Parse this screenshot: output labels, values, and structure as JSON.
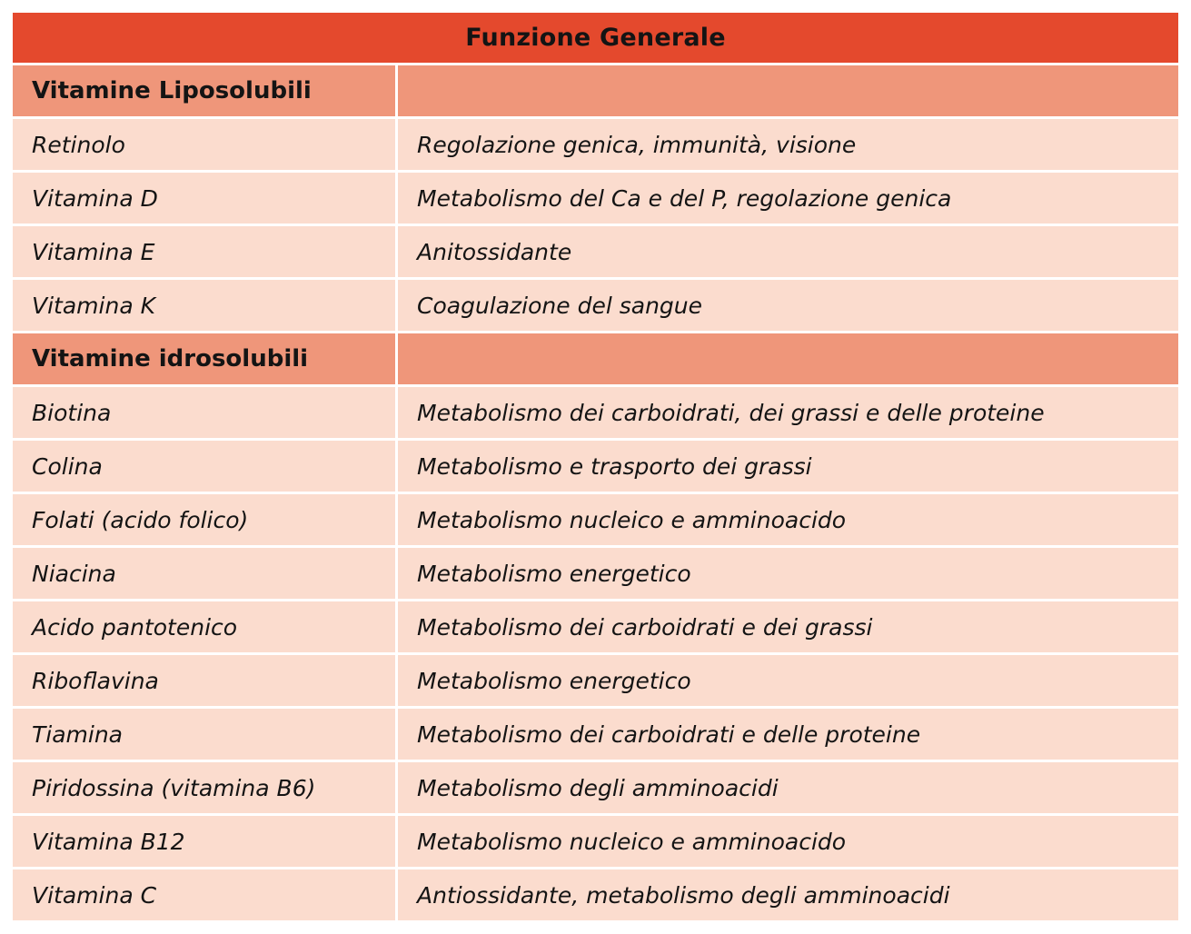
{
  "table": {
    "header": "Funzione Generale",
    "columns": [
      "vitamin",
      "function"
    ],
    "rows": [
      {
        "type": "section",
        "name": "Vitamine Liposolubili",
        "function": ""
      },
      {
        "type": "data",
        "name": "Retinolo",
        "function": "Regolazione genica, immunità, visione"
      },
      {
        "type": "data",
        "name": "Vitamina D",
        "function": "Metabolismo del Ca e del P, regolazione genica"
      },
      {
        "type": "data",
        "name": "Vitamina E",
        "function": "Anitossidante"
      },
      {
        "type": "data",
        "name": "Vitamina K",
        "function": "Coagulazione del sangue"
      },
      {
        "type": "section",
        "name": "Vitamine idrosolubili",
        "function": ""
      },
      {
        "type": "data",
        "name": "Biotina",
        "function": "Metabolismo dei carboidrati, dei grassi e delle proteine"
      },
      {
        "type": "data",
        "name": "Colina",
        "function": "Metabolismo e trasporto dei grassi"
      },
      {
        "type": "data",
        "name": "Folati (acido folico)",
        "function": "Metabolismo nucleico e amminoacido"
      },
      {
        "type": "data",
        "name": "Niacina",
        "function": "Metabolismo energetico"
      },
      {
        "type": "data",
        "name": "Acido pantotenico",
        "function": "Metabolismo dei carboidrati e dei grassi"
      },
      {
        "type": "data",
        "name": "Riboflavina",
        "function": "Metabolismo energetico"
      },
      {
        "type": "data",
        "name": "Tiamina",
        "function": "Metabolismo dei carboidrati e delle proteine"
      },
      {
        "type": "data",
        "name": "Piridossina (vitamina B6)",
        "function": "Metabolismo degli amminoacidi"
      },
      {
        "type": "data",
        "name": "Vitamina B12",
        "function": "Metabolismo nucleico e amminoacido"
      },
      {
        "type": "data",
        "name": "Vitamina C",
        "function": "Antiossidante, metabolismo degli amminoacidi"
      }
    ],
    "colors": {
      "header_bg": "#e4492d",
      "section_bg": "#ef967a",
      "row_bg": "#fbdcce",
      "text": "#141414",
      "page_bg": "#ffffff"
    }
  }
}
